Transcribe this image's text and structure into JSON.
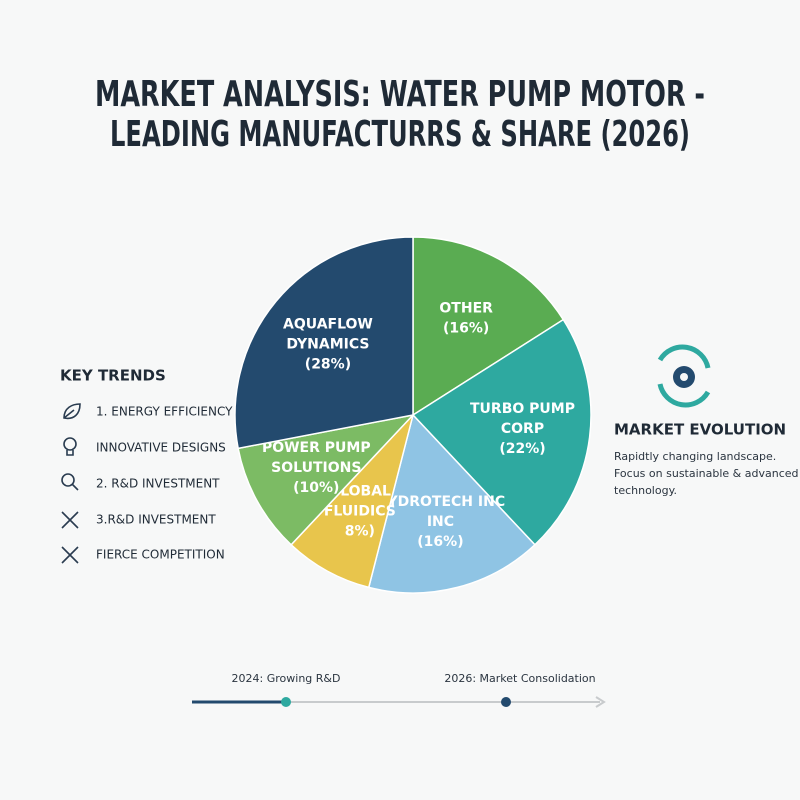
{
  "chart_data": {
    "type": "pie",
    "title": [
      "MARKET ANALYSIS: WATER PUMP MOTOR -",
      "LEADING MANUFACTURRS & SHARE (2026)"
    ],
    "categories": [
      "OTHER",
      "TURBO PUMP CORP",
      "HYDROTECH INC INC",
      "GLOBAL FLUIDICS",
      "POWER PUMP SOLUTIONS",
      "AQUAFLOW DYNAMICS"
    ],
    "values": [
      16,
      22,
      16,
      8,
      10,
      28
    ],
    "value_labels": [
      "(16%)",
      "(22%)",
      "(16%)",
      "8%)",
      "(10%)",
      "(28%)"
    ],
    "colors": [
      "#5aac52",
      "#2ea9a0",
      "#8fc4e4",
      "#e8c54c",
      "#7cbb64",
      "#234a6e"
    ]
  },
  "key_trends": {
    "title": "KEY TRENDS",
    "items": [
      "1. ENERGY EFFICIENCY",
      "INNOVATIVE DESIGNS",
      "2. R&D INVESTMENT",
      "3.R&D INVESTMENT",
      "FIERCE COMPETITION"
    ]
  },
  "market_evolution": {
    "title": "MARKET EVOLUTION",
    "lines": [
      "Rapidtly changing landscape.",
      "Focus on sustainable & advanced",
      "technology."
    ]
  },
  "timeline": [
    "2024: Growing R&D",
    "2026: Market Consolidation"
  ]
}
